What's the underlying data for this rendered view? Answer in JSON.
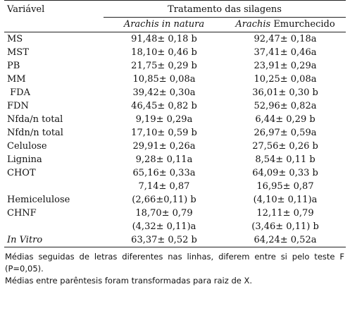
{
  "table": {
    "header": {
      "variable_label": "Variável",
      "group_label": "Tratamento das silagens",
      "col1_label": "Arachis in natura",
      "col2_italic": "Arachis",
      "col2_plain": " Emurchecido"
    },
    "rows": [
      {
        "variable": "MS",
        "natura": "91,48± 0,18 b",
        "emurchecido": "92,47± 0,18a"
      },
      {
        "variable": "MST",
        "natura": "18,10± 0,46 b",
        "emurchecido": "37,41± 0,46a"
      },
      {
        "variable": "PB",
        "natura": "21,75± 0,29 b",
        "emurchecido": "23,91± 0,29a"
      },
      {
        "variable": "MM",
        "natura": "10,85± 0,08a",
        "emurchecido": "10,25± 0,08a"
      },
      {
        "variable": " FDA",
        "natura": "39,42± 0,30a",
        "emurchecido": "36,01± 0,30 b"
      },
      {
        "variable": "FDN",
        "natura": "46,45± 0,82 b",
        "emurchecido": "52,96± 0,82a"
      },
      {
        "variable": "Nfda/n total",
        "natura": "9,19± 0,29a",
        "emurchecido": "6,44± 0,29 b"
      },
      {
        "variable": "Nfdn/n total",
        "natura": "17,10± 0,59 b",
        "emurchecido": "26,97± 0,59a"
      },
      {
        "variable": "Celulose",
        "natura": "29,91± 0,26a",
        "emurchecido": "27,56± 0,26 b"
      },
      {
        "variable": "Lignina",
        "natura": "9,28± 0,11a",
        "emurchecido": "8,54± 0,11 b"
      },
      {
        "variable": "CHOT",
        "natura": "65,16± 0,33a",
        "emurchecido": "64,09± 0,33 b"
      },
      {
        "variable": "",
        "natura": "7,14± 0,87",
        "emurchecido": "16,95± 0,87"
      },
      {
        "variable": "Hemicelulose",
        "natura": "(2,66±0,11) b",
        "emurchecido": "(4,10± 0,11)a"
      },
      {
        "variable": "CHNF",
        "natura": "18,70± 0,79",
        "emurchecido": "12,11± 0,79"
      },
      {
        "variable": "",
        "natura": "(4,32± 0,11)a",
        "emurchecido": "(3,46± 0,11) b"
      },
      {
        "variable": "In Vitro",
        "natura": "63,37± 0,52 b",
        "emurchecido": "64,24± 0,52a",
        "italic_variable": true
      }
    ]
  },
  "notes": [
    "Médias seguidas de letras diferentes nas linhas, diferem entre si pelo teste F (P=0,05).",
    "Médias entre parêntesis foram transformadas para raiz de X."
  ]
}
